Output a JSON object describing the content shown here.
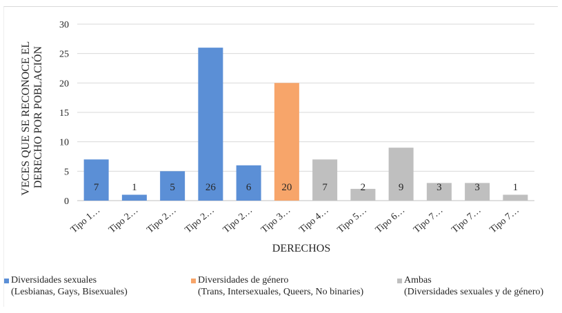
{
  "chart_data": {
    "type": "bar",
    "ylabel": [
      "VECES QUE SE RECONOCE EL",
      "DERECHO POR POBLACIÓN"
    ],
    "xlabel": "DERECHOS",
    "ylim": [
      0,
      30
    ],
    "yticks": [
      0,
      5,
      10,
      15,
      20,
      25,
      30
    ],
    "grid": true,
    "legend_position": "bottom",
    "categories": [
      "Tipo 1…",
      "Tipo 2…",
      "Tipo 2…",
      "Tipo 2…",
      "Tipo 2…",
      "Tipo 3…",
      "Tipo 4…",
      "Tipo 5…",
      "Tipo 6…",
      "Tipo 7…",
      "Tipo 7…",
      "Tipo 7…"
    ],
    "values": [
      7,
      1,
      5,
      26,
      6,
      20,
      7,
      2,
      9,
      3,
      3,
      1
    ],
    "groups": [
      "sexual",
      "sexual",
      "sexual",
      "sexual",
      "sexual",
      "genero",
      "ambas",
      "ambas",
      "ambas",
      "ambas",
      "ambas",
      "ambas"
    ],
    "series": [
      {
        "key": "sexual",
        "name": "Diversidades sexuales",
        "subtitle": "(Lesbianas, Gays, Bisexuales)",
        "color": "#5b8fd6"
      },
      {
        "key": "genero",
        "name": "Diversidades de género",
        "subtitle": "(Trans, Intersexuales, Queers, No binaries)",
        "color": "#f7a56a"
      },
      {
        "key": "ambas",
        "name": "Ambas",
        "subtitle": "(Diversidades sexuales y de género)",
        "color": "#bfbfbf"
      }
    ]
  }
}
